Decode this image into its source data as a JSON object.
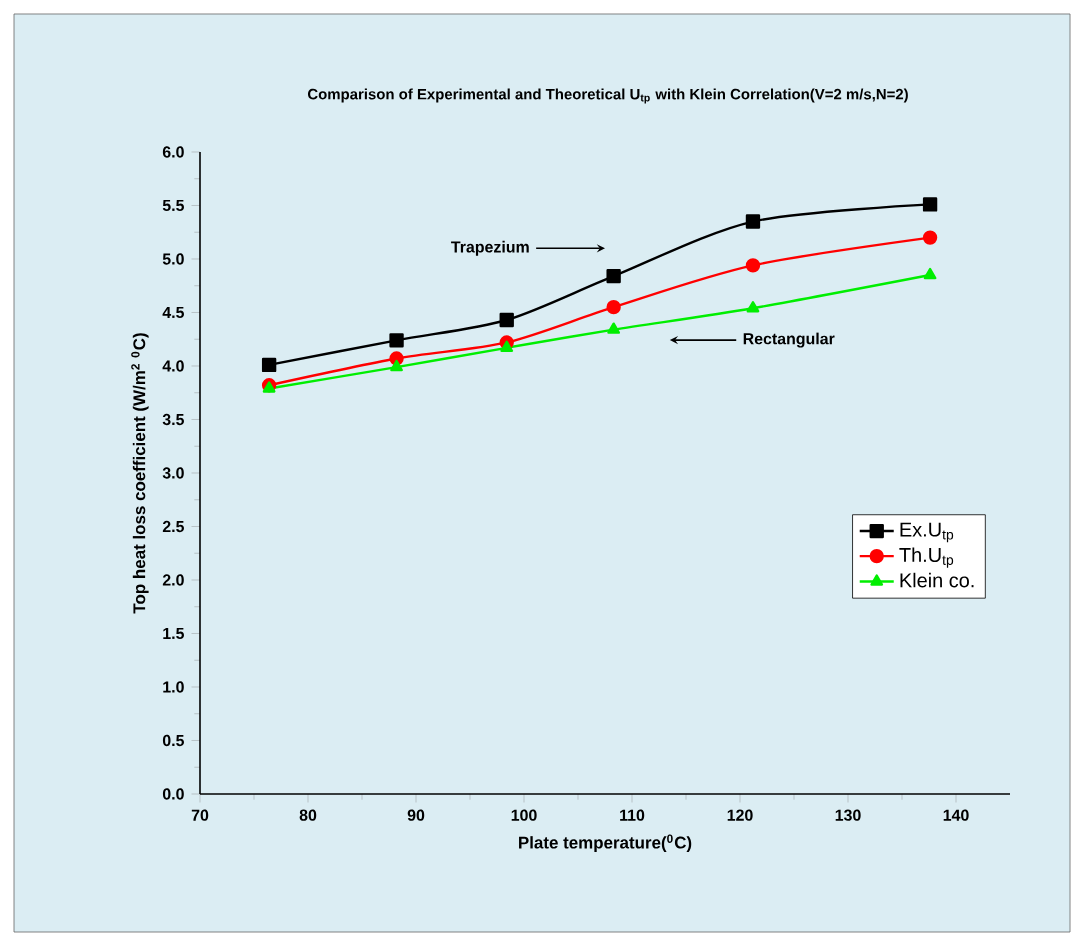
{
  "chart_data": {
    "type": "line",
    "title": "Comparison of Experimental and Theoretical U$_{tp}$ with Klein Correlation(V=2 m/s,N=2)",
    "xlabel": "Plate temperature($^{0}$C)",
    "ylabel": "Top heat loss coefficient (W/m$^{2}$ $^{0}$C)",
    "x": [
      76.4,
      88.2,
      98.4,
      108.3,
      121.2,
      137.6
    ],
    "series": [
      {
        "name": "Ex.U$_{tp}$",
        "color": "#000000",
        "marker": "square",
        "values": [
          4.01,
          4.24,
          4.43,
          4.84,
          5.35,
          5.51
        ]
      },
      {
        "name": "Th.U$_{tp}$",
        "color": "#ff0000",
        "marker": "circle",
        "values": [
          3.82,
          4.07,
          4.22,
          4.55,
          4.94,
          5.2
        ]
      },
      {
        "name": "Klein co.",
        "color": "#00ee00",
        "marker": "triangle",
        "values": [
          3.79,
          3.99,
          4.17,
          4.34,
          4.54,
          4.85
        ]
      }
    ],
    "annotations": [
      "Trapezium",
      "Rectangular"
    ],
    "xlim": [
      70,
      145
    ],
    "xticks": [
      70,
      80,
      90,
      100,
      110,
      120,
      130,
      140
    ],
    "ylim": [
      0,
      6
    ],
    "yticks": [
      {
        "value": 0,
        "label": "0.0"
      },
      0.5,
      {
        "value": 1,
        "label": "1.0"
      },
      1.5,
      {
        "value": 2,
        "label": "2.0"
      },
      2.5,
      {
        "value": 3,
        "label": "3.0"
      },
      3.5,
      {
        "value": 4,
        "label": "4.0"
      },
      4.5,
      {
        "value": 5,
        "label": "5.0"
      },
      5.5,
      {
        "value": 6,
        "label": "6.0"
      }
    ],
    "grid": false,
    "legend": "right",
    "line_style": "solid"
  }
}
